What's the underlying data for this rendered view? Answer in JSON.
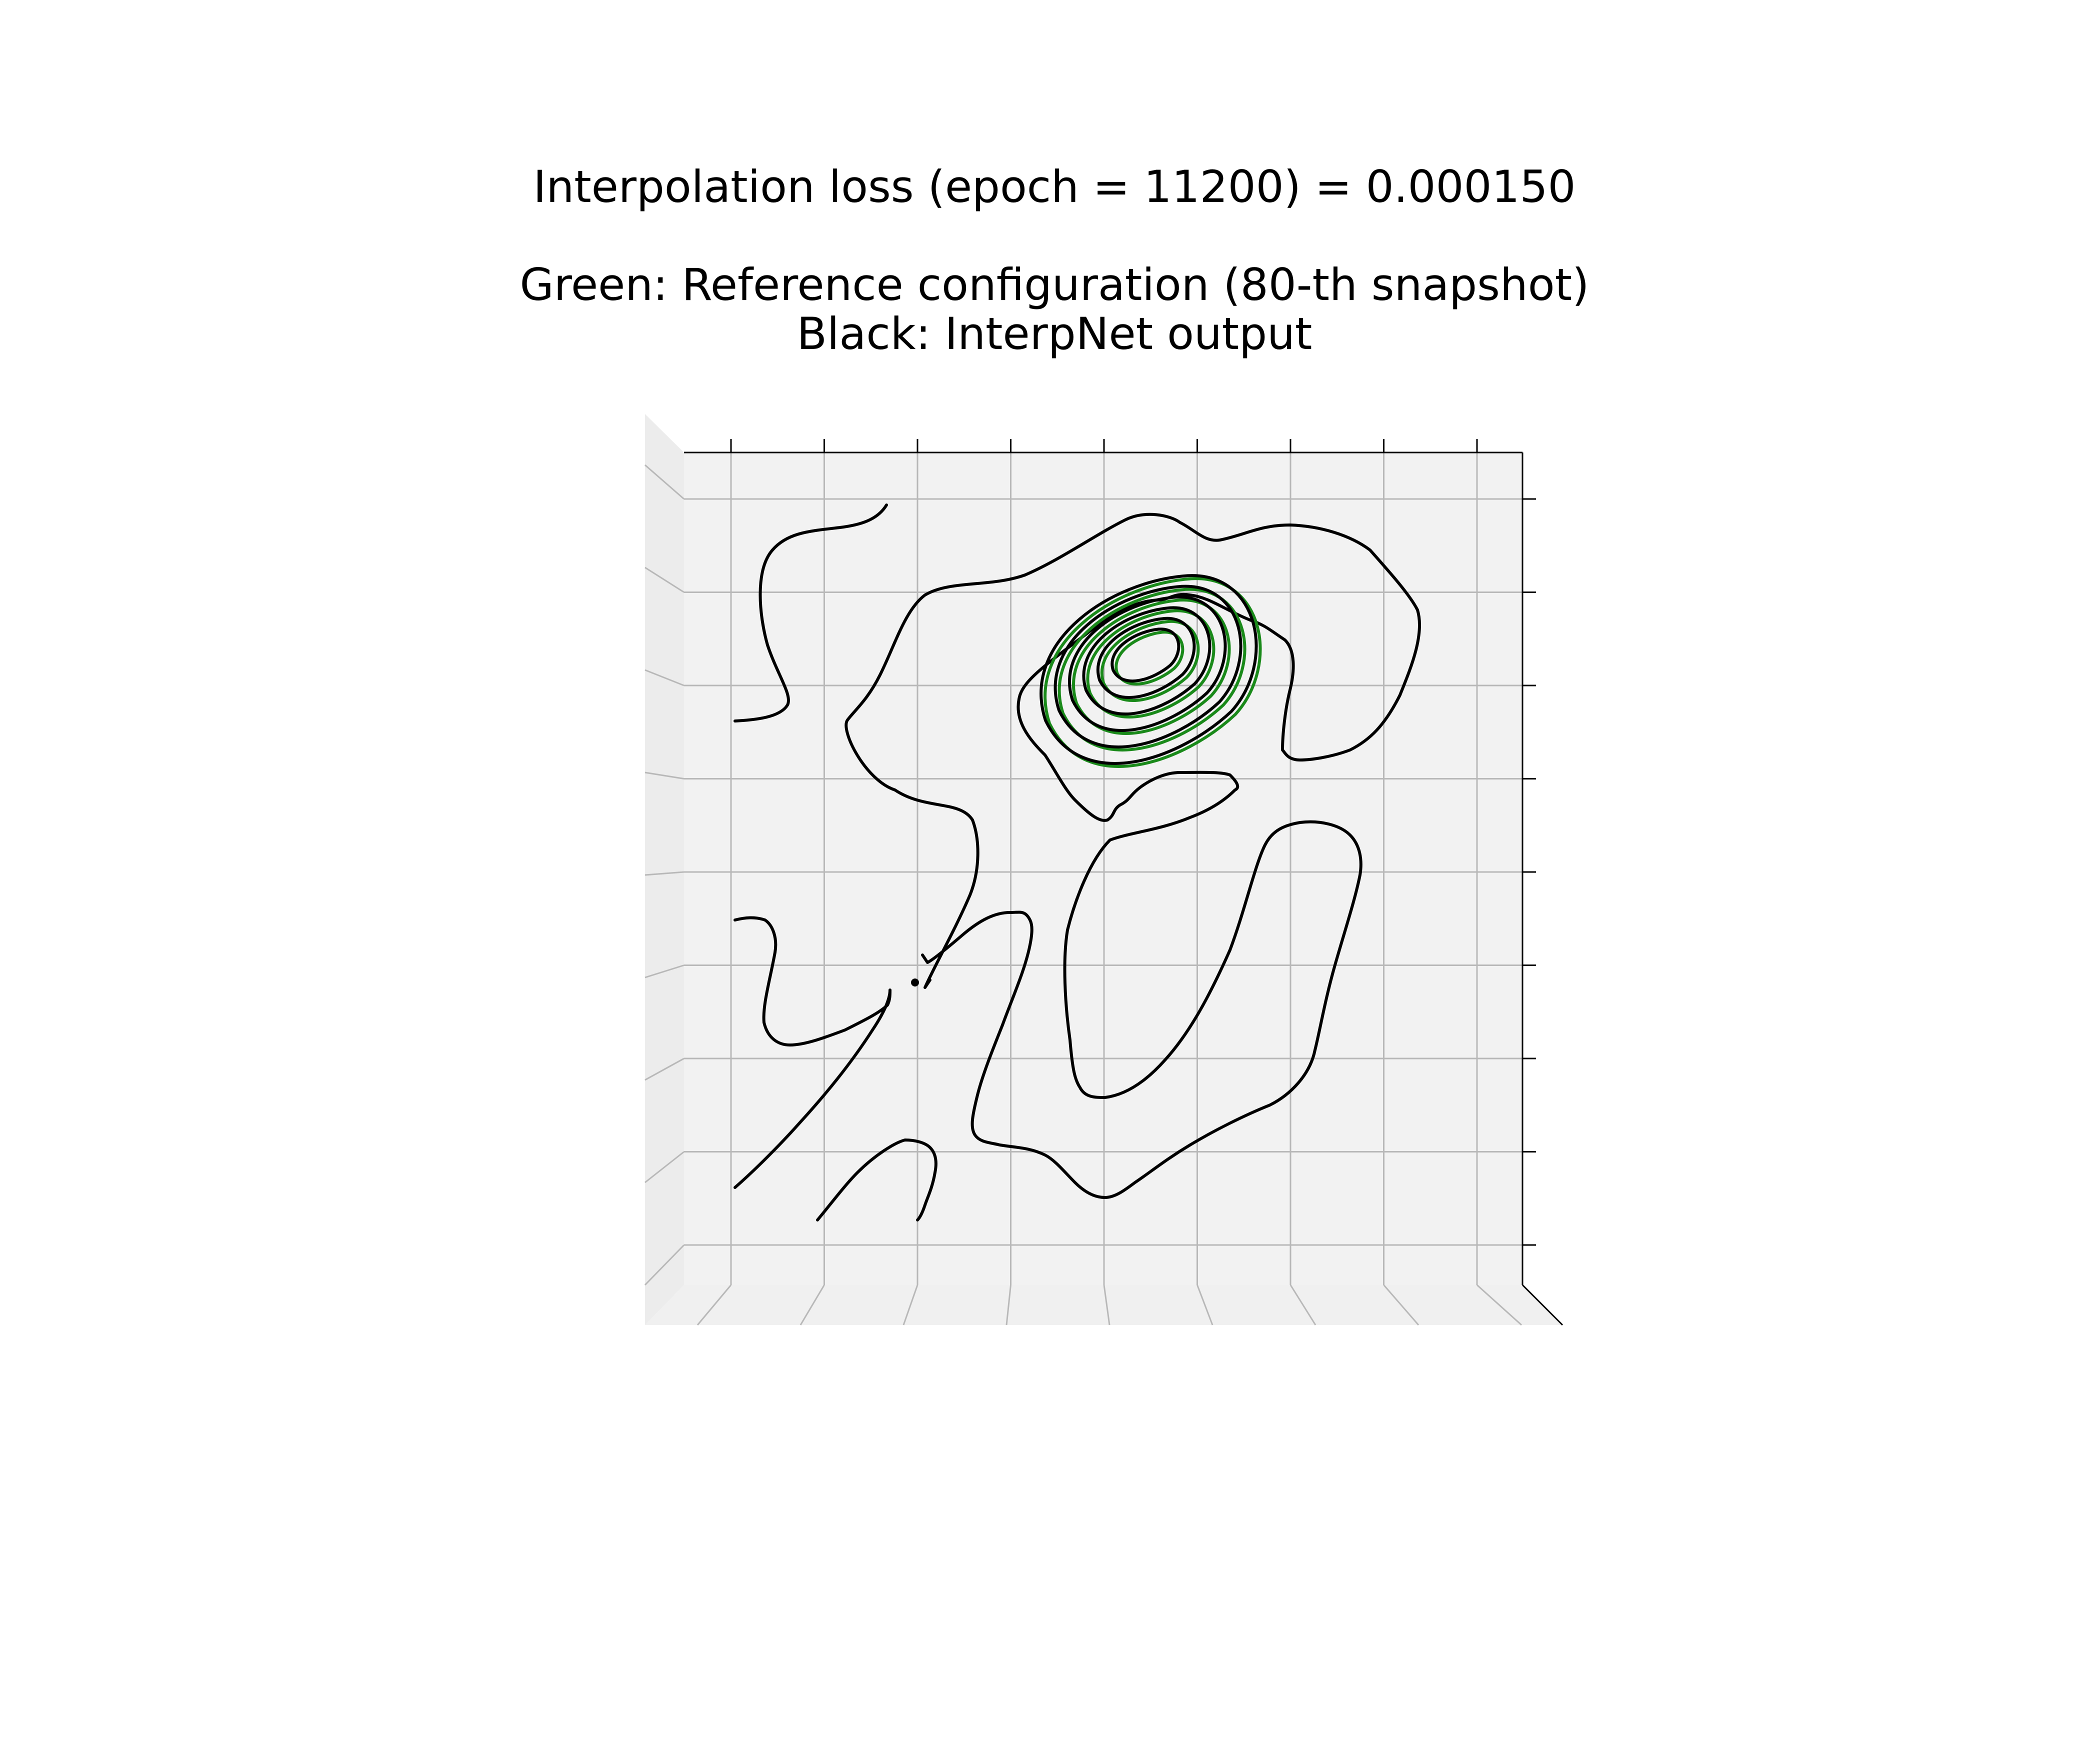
{
  "chart_data": {
    "type": "contour",
    "view": "3d-axes-top-down",
    "title": {
      "line1": "Interpolation loss (epoch = 11200) = 0.000150",
      "line2": "Green: Reference configuration (80-th snapshot)",
      "line3": "Black: InterpNet output"
    },
    "epoch": 11200,
    "loss": 0.00015,
    "snapshot": 80,
    "xlabel": "",
    "ylabel": "",
    "tick_labels_shown": false,
    "grid": true,
    "domain": {
      "xlim": [
        0,
        1
      ],
      "ylim": [
        0,
        1
      ]
    },
    "series": [
      {
        "name": "Reference configuration",
        "color": "#1a8a1a",
        "description": "concentric closed contours around the peak",
        "peak": [
          0.55,
          0.76
        ],
        "levels": 6
      },
      {
        "name": "InterpNet output",
        "color": "#000000",
        "description": "concentric contours at the peak plus scattered outer contour lines",
        "peak": [
          0.55,
          0.76
        ],
        "levels": 6
      }
    ]
  }
}
